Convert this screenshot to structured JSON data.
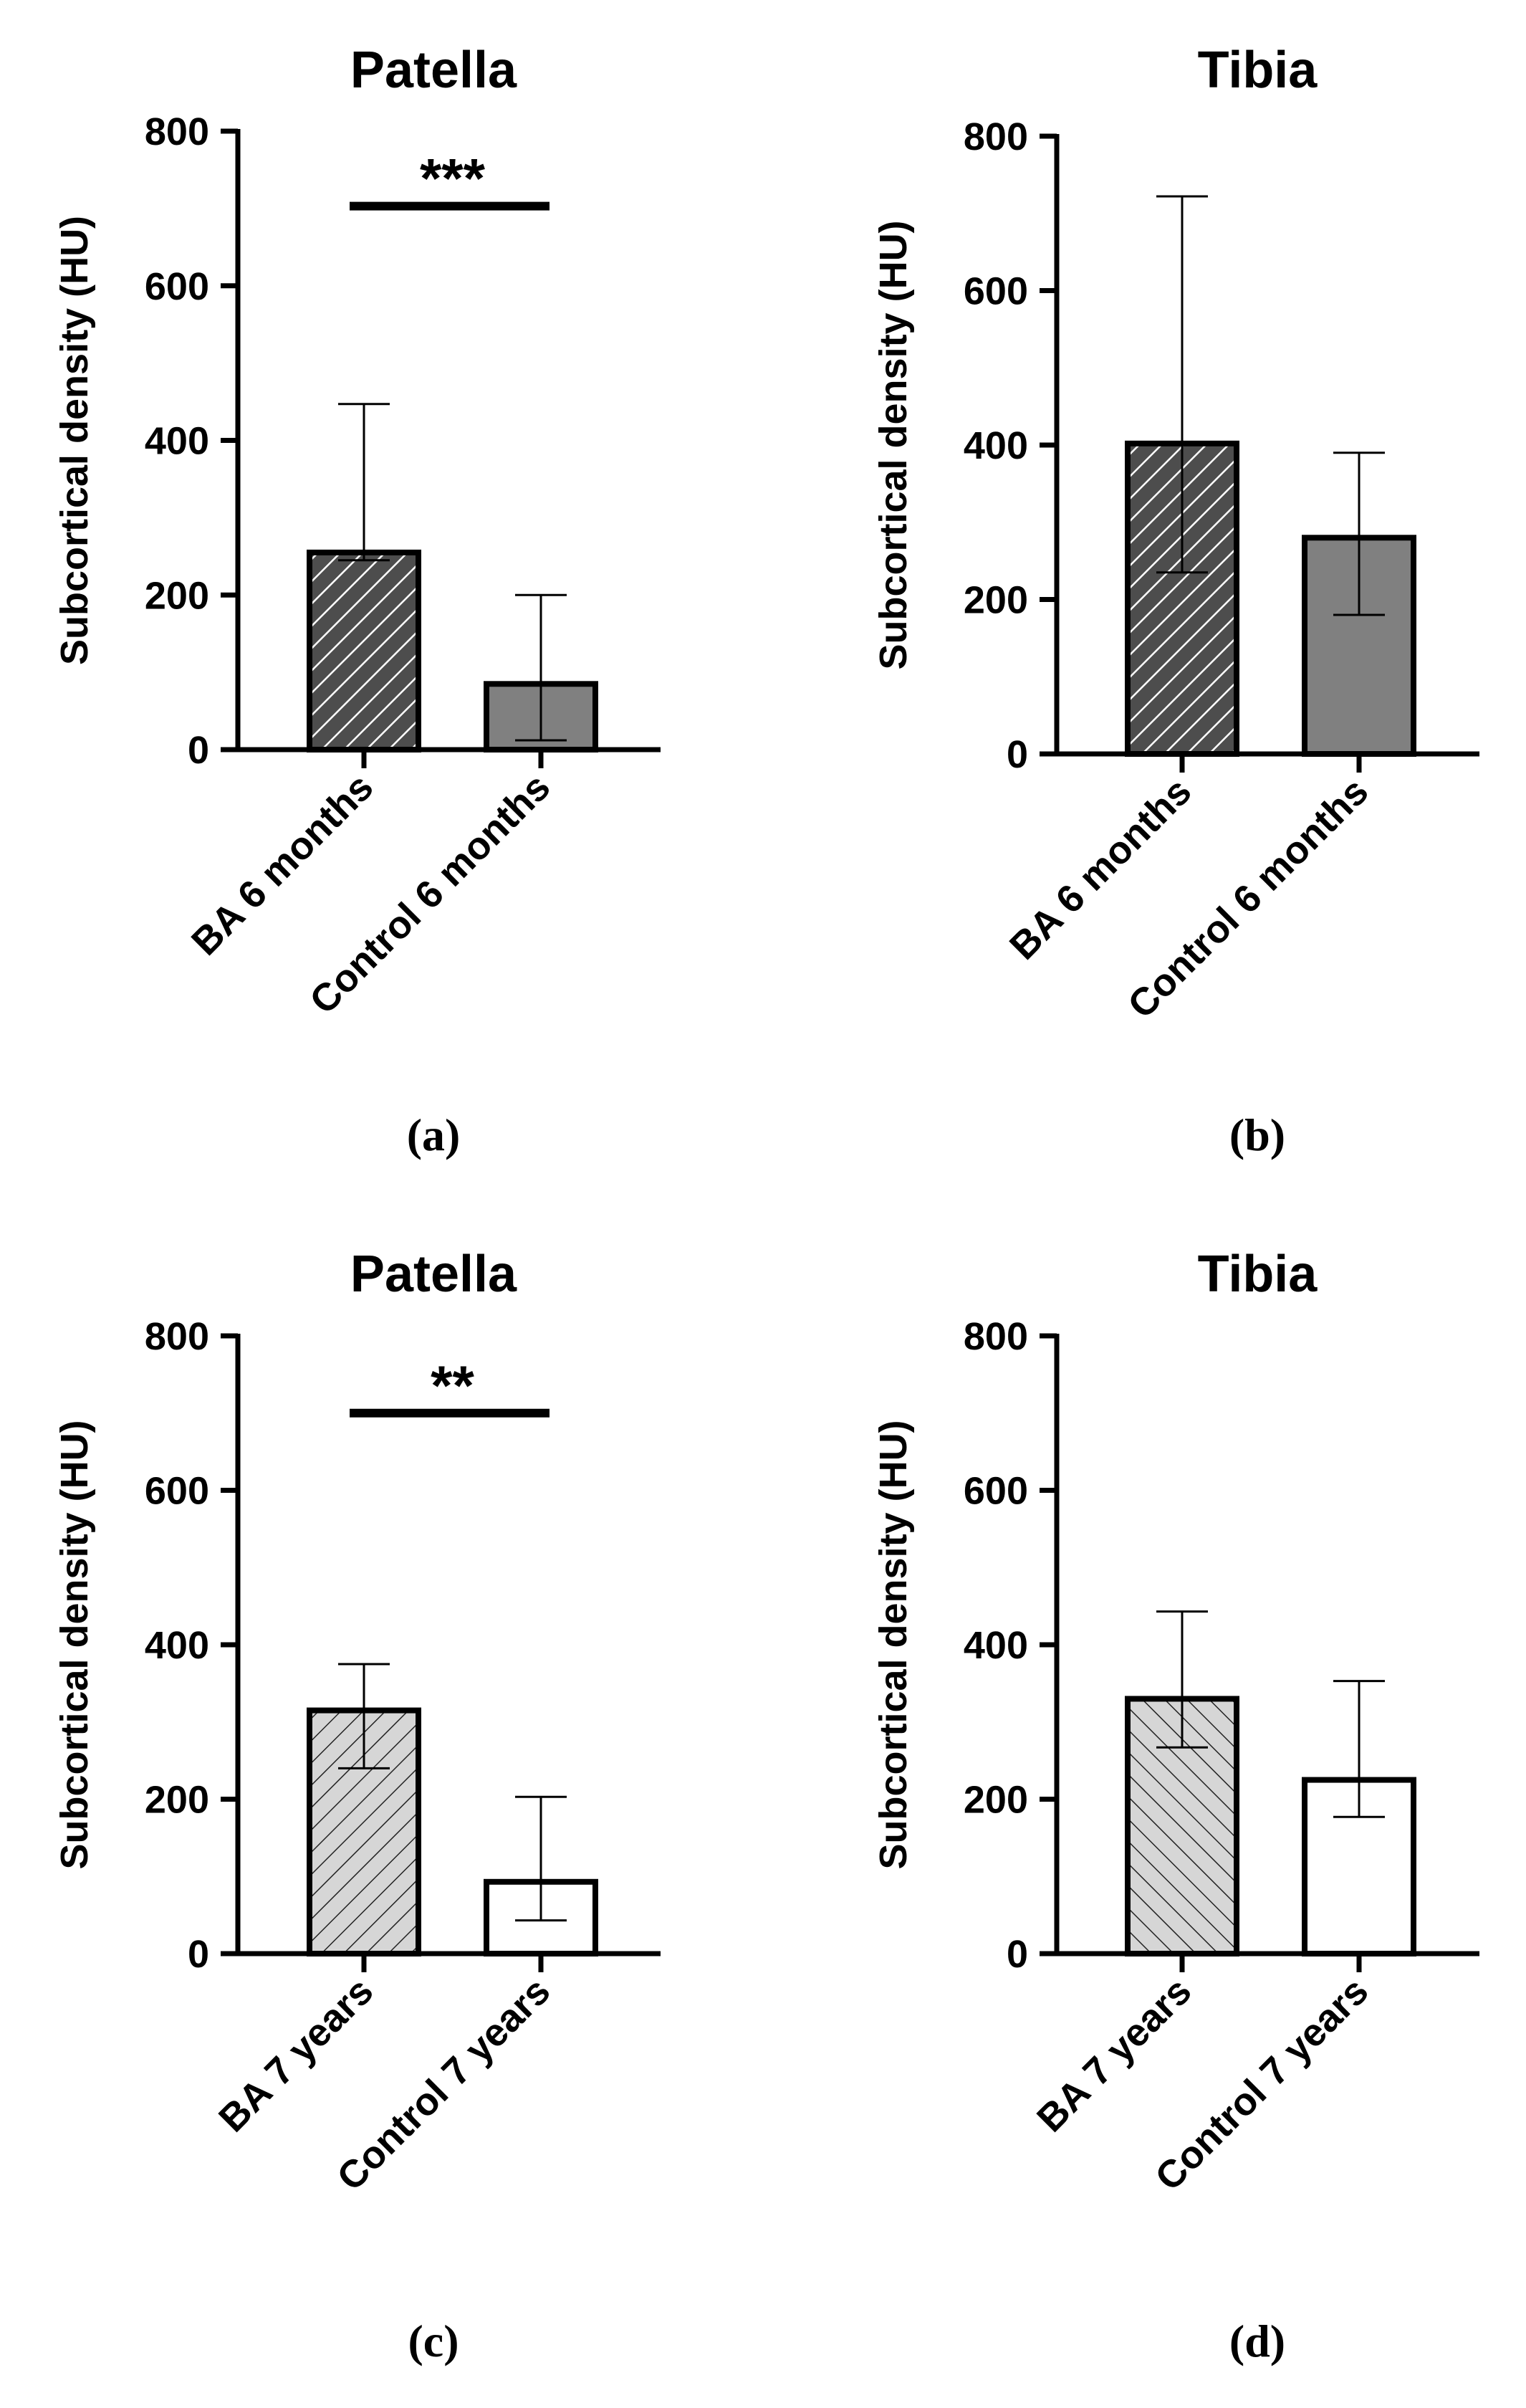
{
  "chart_data": [
    {
      "type": "bar",
      "title": "Patella",
      "panel": "(a)",
      "ylabel": "Subcortical density (HU)",
      "xlabel": "",
      "ylim": [
        0,
        800
      ],
      "yticks": [
        0,
        200,
        400,
        600,
        800
      ],
      "categories": [
        "BA 6 months",
        "Control 6 months"
      ],
      "values": [
        255,
        85
      ],
      "error_upper": [
        447,
        200
      ],
      "error_lower": [
        245,
        12
      ],
      "fills": [
        "dark-hatch",
        "gray-solid"
      ],
      "significance": {
        "label": "***",
        "value": 703
      }
    },
    {
      "type": "bar",
      "title": "Tibia",
      "panel": "(b)",
      "ylabel": "Subcortical density (HU)",
      "xlabel": "",
      "ylim": [
        0,
        800
      ],
      "yticks": [
        0,
        200,
        400,
        600,
        800
      ],
      "categories": [
        "BA 6 months",
        "Control 6 months"
      ],
      "values": [
        402,
        280
      ],
      "error_upper": [
        722,
        390
      ],
      "error_lower": [
        235,
        180
      ],
      "fills": [
        "dark-hatch",
        "gray-solid"
      ],
      "significance": null
    },
    {
      "type": "bar",
      "title": "Patella",
      "panel": "(c)",
      "ylabel": "Subcortical density (HU)",
      "xlabel": "",
      "ylim": [
        0,
        800
      ],
      "yticks": [
        0,
        200,
        400,
        600,
        800
      ],
      "categories": [
        "BA 7 years",
        "Control 7 years"
      ],
      "values": [
        315,
        93
      ],
      "error_upper": [
        375,
        203
      ],
      "error_lower": [
        240,
        43
      ],
      "fills": [
        "light-hatch",
        "white-solid"
      ],
      "significance": {
        "label": "**",
        "value": 700
      }
    },
    {
      "type": "bar",
      "title": "Tibia",
      "panel": "(d)",
      "ylabel": "Subcortical density (HU)",
      "xlabel": "",
      "ylim": [
        0,
        800
      ],
      "yticks": [
        0,
        200,
        400,
        600,
        800
      ],
      "categories": [
        "BA 7 years",
        "Control 7 years"
      ],
      "values": [
        330,
        225
      ],
      "error_upper": [
        443,
        353
      ],
      "error_lower": [
        267,
        177
      ],
      "fills": [
        "light-hatch-rev",
        "white-solid"
      ],
      "significance": null
    }
  ],
  "colors": {
    "axis": "#000000",
    "dark_hatch_bg": "#4d4d4d",
    "dark_hatch_line": "#ffffff",
    "gray_solid": "#808080",
    "light_hatch_bg": "#d6d6d6",
    "light_hatch_line": "#222222",
    "white_solid": "#ffffff"
  }
}
